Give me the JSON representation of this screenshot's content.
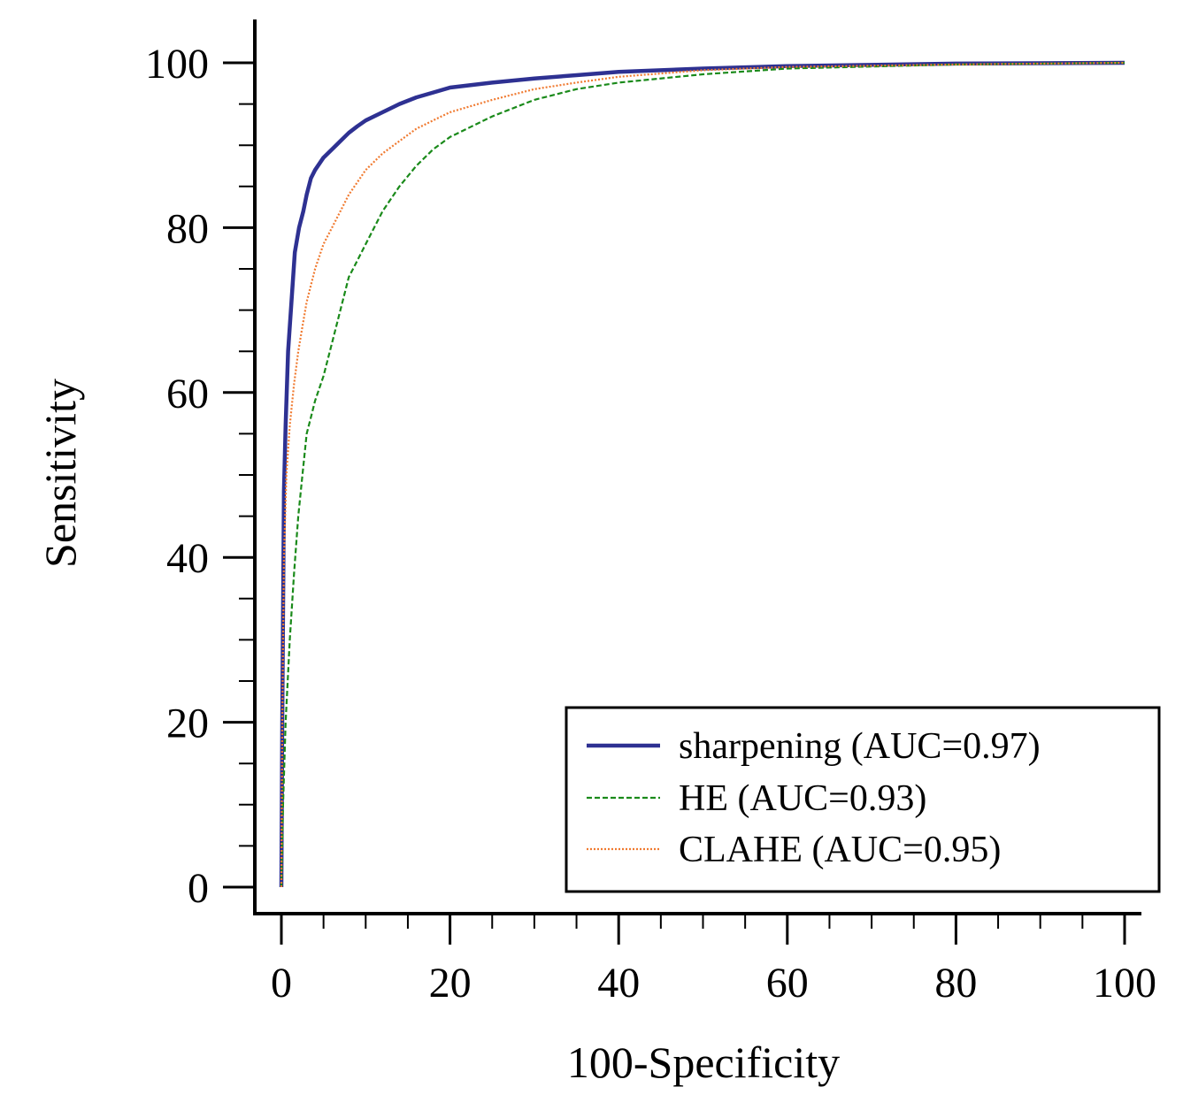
{
  "chart_data": {
    "type": "line",
    "title": "",
    "xlabel": "100-Specificity",
    "ylabel": "Sensitivity",
    "xlim": [
      0,
      100
    ],
    "ylim": [
      0,
      100
    ],
    "x_ticks": [
      0,
      20,
      40,
      60,
      80,
      100
    ],
    "y_ticks": [
      0,
      20,
      40,
      60,
      80,
      100
    ],
    "x_tick_labels": [
      "0",
      "20",
      "40",
      "60",
      "80",
      "100"
    ],
    "y_tick_labels": [
      "0",
      "20",
      "40",
      "60",
      "80",
      "100"
    ],
    "grid": false,
    "legend_position": "bottom-right",
    "series": [
      {
        "name": "sharpening (AUC=0.97)",
        "color": "#2e3192",
        "style": "solid",
        "x": [
          0,
          0.1,
          0.3,
          0.5,
          0.8,
          1.2,
          1.6,
          2.1,
          2.6,
          3.0,
          3.5,
          4.0,
          5.0,
          6.0,
          7.0,
          8.0,
          9.0,
          10.0,
          12.0,
          14.0,
          16.0,
          18.0,
          20.0,
          25.0,
          30.0,
          35.0,
          40.0,
          50.0,
          60.0,
          80.0,
          100.0
        ],
        "y": [
          0,
          20,
          48,
          56,
          65,
          71,
          77,
          80,
          82,
          84,
          86,
          87,
          88.5,
          89.5,
          90.5,
          91.5,
          92.3,
          93.0,
          94.0,
          95.0,
          95.8,
          96.4,
          97.0,
          97.6,
          98.1,
          98.5,
          98.9,
          99.3,
          99.6,
          99.9,
          100
        ]
      },
      {
        "name": "HE (AUC=0.93)",
        "color": "#1a8a1a",
        "style": "dashed",
        "x": [
          0,
          0.2,
          0.5,
          1.0,
          1.5,
          2.0,
          2.5,
          3.0,
          3.5,
          4.0,
          5.0,
          6.0,
          7.0,
          8.0,
          9.0,
          10.0,
          12.0,
          14.0,
          16.0,
          18.0,
          20.0,
          25.0,
          30.0,
          35.0,
          40.0,
          50.0,
          60.0,
          80.0,
          100.0
        ],
        "y": [
          0,
          10,
          20,
          30,
          38,
          45,
          50,
          55,
          57,
          59,
          62,
          66,
          70,
          74,
          76,
          78,
          82,
          85,
          87.5,
          89.5,
          91,
          93.5,
          95.5,
          96.8,
          97.6,
          98.6,
          99.3,
          99.8,
          100
        ]
      },
      {
        "name": "CLAHE (AUC=0.95)",
        "color": "#f07a30",
        "style": "dotted",
        "x": [
          0,
          0.1,
          0.3,
          0.6,
          1.0,
          1.5,
          2.0,
          2.5,
          3.0,
          4.0,
          5.0,
          6.0,
          7.0,
          8.0,
          9.0,
          10.0,
          12.0,
          14.0,
          16.0,
          18.0,
          20.0,
          25.0,
          30.0,
          35.0,
          40.0,
          50.0,
          60.0,
          80.0,
          100.0
        ],
        "y": [
          0,
          20,
          40,
          50,
          56,
          61,
          65,
          68,
          71,
          75,
          78,
          80,
          82,
          84,
          85.5,
          87,
          89,
          90.5,
          92,
          93,
          94,
          95.5,
          96.8,
          97.6,
          98.3,
          99.1,
          99.5,
          99.8,
          100
        ]
      }
    ]
  }
}
